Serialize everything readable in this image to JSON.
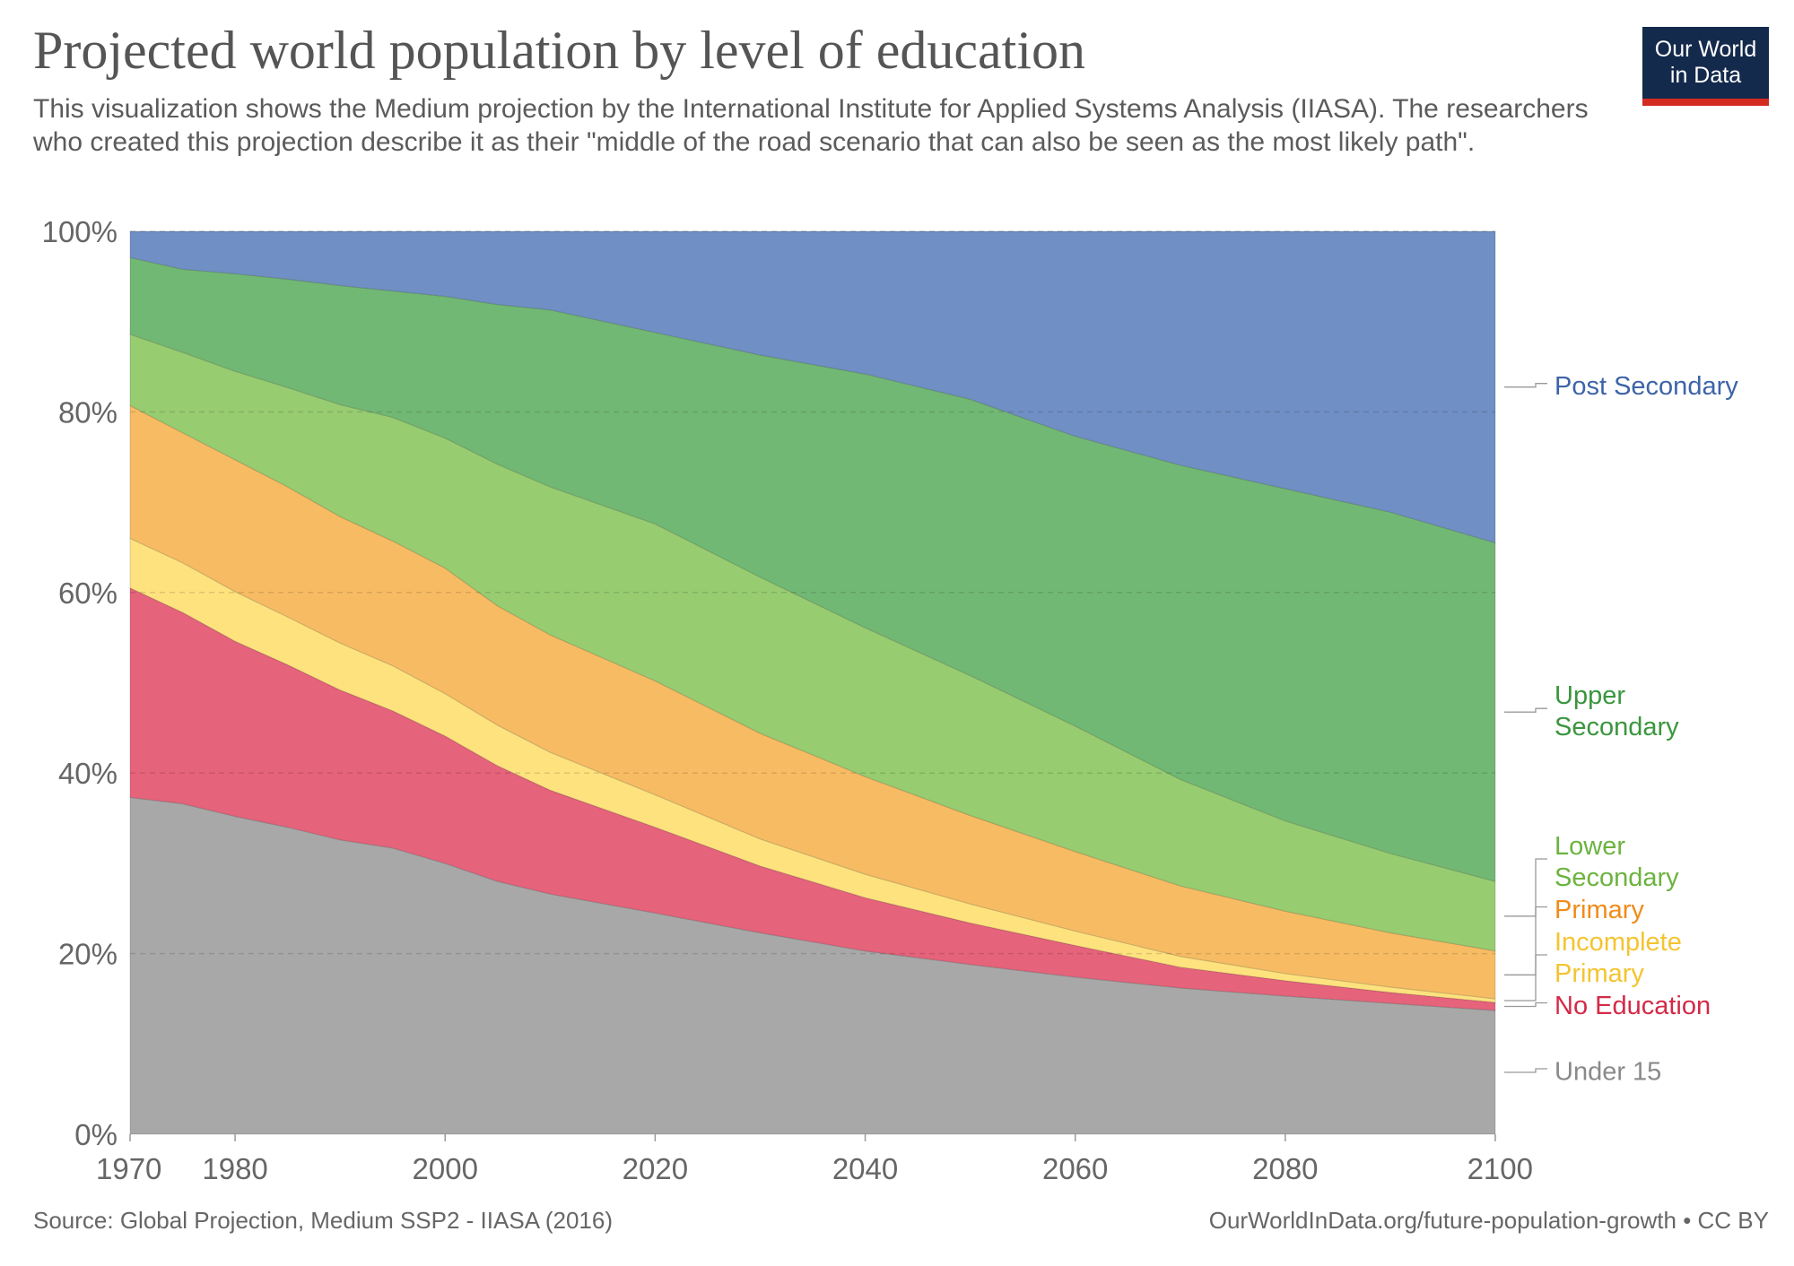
{
  "header": {
    "title": "Projected world population by level of education",
    "subtitle": "This visualization shows the Medium projection by the International Institute for Applied Systems Analysis (IIASA).  The researchers who created this projection describe it as their \"middle of the road scenario that can also be seen as the most likely path\"."
  },
  "logo": {
    "line1": "Our World",
    "line2": "in Data"
  },
  "footer": {
    "source": "Source: Global Projection, Medium SSP2 - IIASA (2016)",
    "credit": "OurWorldInData.org/future-population-growth • CC BY"
  },
  "chart_data": {
    "type": "area",
    "stacked": true,
    "normalized": true,
    "x": [
      1970,
      1975,
      1980,
      1985,
      1990,
      1995,
      2000,
      2005,
      2010,
      2020,
      2030,
      2040,
      2050,
      2060,
      2070,
      2080,
      2090,
      2100
    ],
    "xticks": [
      1970,
      1980,
      2000,
      2020,
      2040,
      2060,
      2080,
      2100
    ],
    "xtick_labels": [
      "1970",
      "1980",
      "2000",
      "2020",
      "2040",
      "2060",
      "2080",
      "2100"
    ],
    "ylim": [
      0,
      100
    ],
    "yticks": [
      0,
      20,
      40,
      60,
      80,
      100
    ],
    "ytick_labels": [
      "0%",
      "20%",
      "40%",
      "60%",
      "80%",
      "100%"
    ],
    "grid": "horizontal-dashed",
    "legend": "right-inline",
    "series": [
      {
        "name": "Under 15",
        "label_lines": [
          "Under 15"
        ],
        "color": "#a8a8a8",
        "label_color": "#8a8a8a",
        "values": [
          37.3,
          36.6,
          35.2,
          34.0,
          32.6,
          31.7,
          30.0,
          28.0,
          26.6,
          24.5,
          22.3,
          20.3,
          18.8,
          17.4,
          16.2,
          15.3,
          14.5,
          13.7
        ]
      },
      {
        "name": "No Education",
        "label_lines": [
          "No Education"
        ],
        "color": "#e5637b",
        "label_color": "#d32a47",
        "values": [
          23.2,
          21.2,
          19.4,
          18.0,
          16.6,
          15.2,
          14.1,
          12.8,
          11.5,
          9.5,
          7.4,
          5.9,
          4.6,
          3.5,
          2.3,
          1.7,
          1.2,
          0.9
        ]
      },
      {
        "name": "Incomplete Primary",
        "label_lines": [
          "Incomplete",
          "Primary"
        ],
        "color": "#fde27e",
        "label_color": "#f4c430",
        "values": [
          5.5,
          5.5,
          5.5,
          5.3,
          5.2,
          5.0,
          4.7,
          4.5,
          4.2,
          3.6,
          3.0,
          2.6,
          2.1,
          1.6,
          1.2,
          0.8,
          0.6,
          0.4
        ]
      },
      {
        "name": "Primary",
        "label_lines": [
          "Primary"
        ],
        "color": "#f7bc63",
        "label_color": "#f08c1a",
        "values": [
          14.7,
          14.4,
          14.6,
          14.4,
          14.0,
          13.8,
          13.9,
          13.2,
          13.0,
          12.6,
          11.7,
          10.8,
          9.8,
          8.8,
          7.8,
          6.9,
          6.0,
          5.3
        ]
      },
      {
        "name": "Lower Secondary",
        "label_lines": [
          "Lower",
          "Secondary"
        ],
        "color": "#97cc71",
        "label_color": "#6cb33f",
        "values": [
          7.9,
          8.9,
          9.8,
          11.0,
          12.4,
          13.7,
          14.4,
          15.7,
          16.4,
          17.4,
          17.3,
          16.5,
          15.5,
          13.9,
          11.8,
          10.0,
          8.8,
          7.7
        ]
      },
      {
        "name": "Upper Secondary",
        "label_lines": [
          "Upper",
          "Secondary"
        ],
        "color": "#72b875",
        "label_color": "#3a963e",
        "values": [
          8.5,
          9.2,
          10.8,
          12.0,
          13.2,
          14.0,
          15.7,
          17.7,
          19.6,
          21.2,
          24.6,
          28.1,
          30.6,
          32.1,
          34.8,
          36.8,
          37.8,
          37.5
        ]
      },
      {
        "name": "Post Secondary",
        "label_lines": [
          "Post Secondary"
        ],
        "color": "#708fc4",
        "label_color": "#3d64a8",
        "values": [
          2.9,
          4.2,
          4.7,
          5.3,
          6.0,
          6.6,
          7.2,
          8.1,
          8.7,
          11.2,
          13.7,
          15.8,
          18.6,
          22.7,
          25.9,
          28.5,
          31.1,
          34.5
        ]
      }
    ]
  }
}
